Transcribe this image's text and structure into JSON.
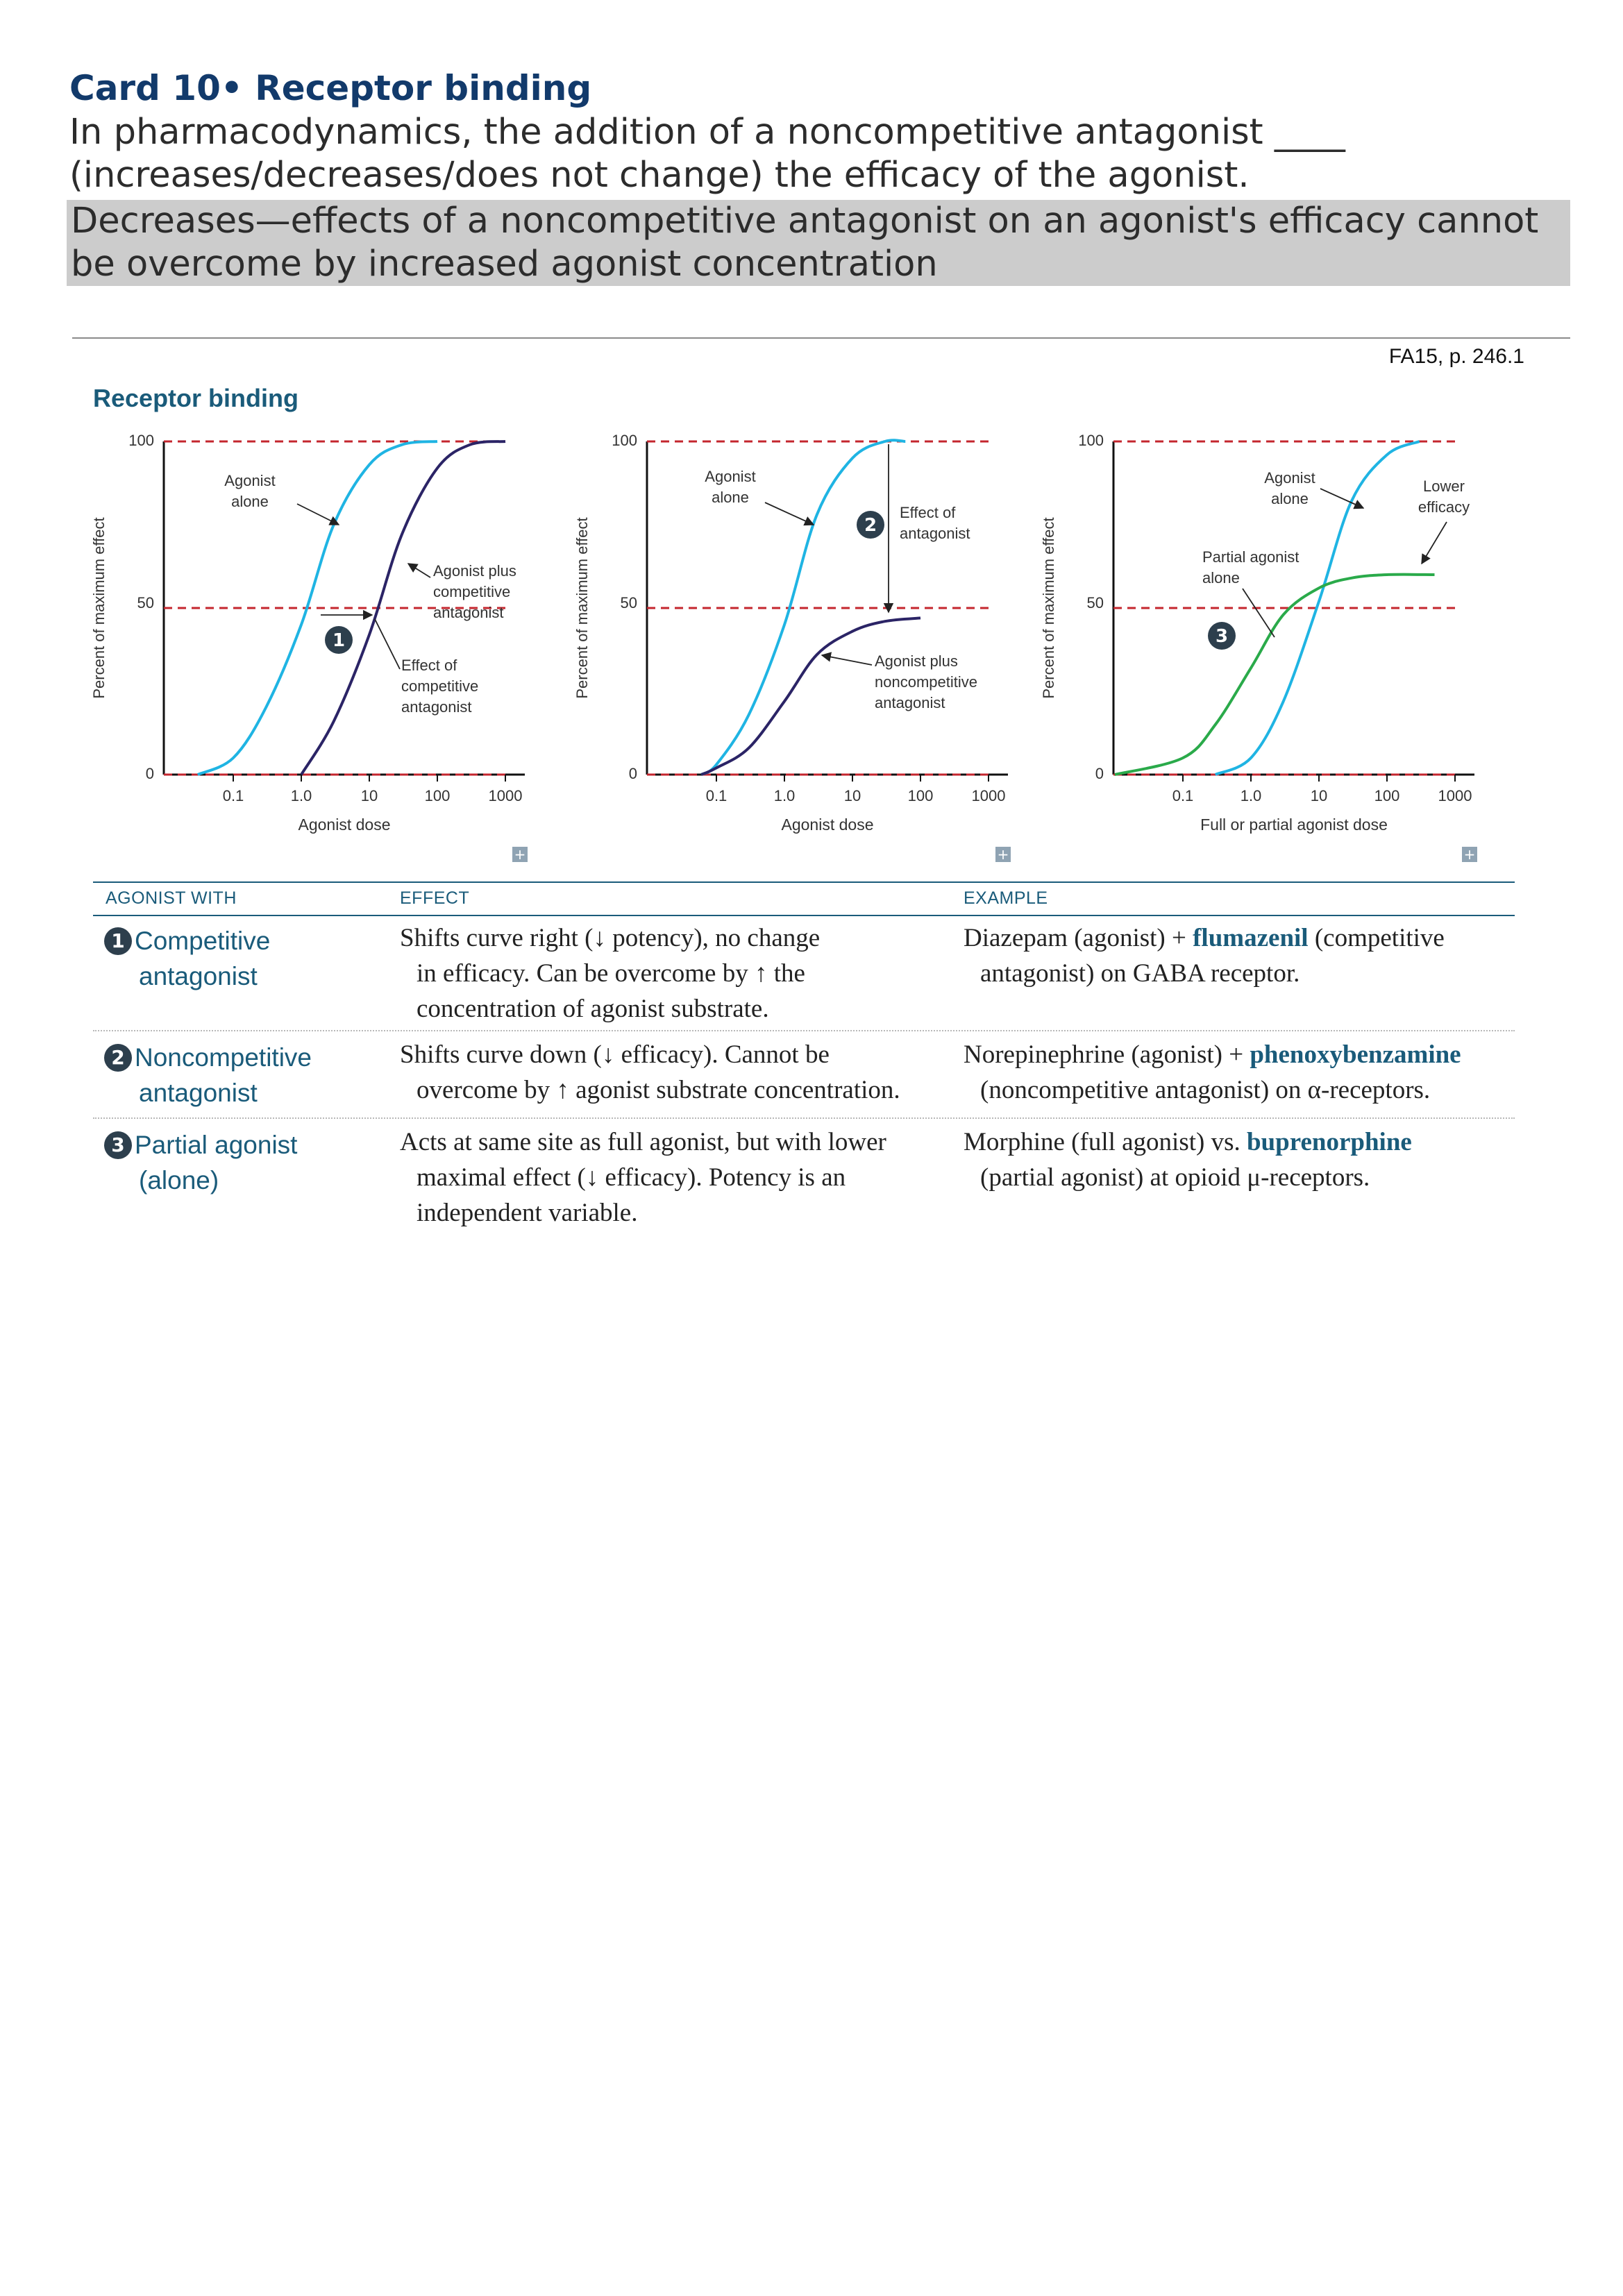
{
  "card": {
    "title": "Card 10• Receptor binding",
    "question": "In pharmacodynamics, the addition of a noncompetitive antagonist ____ (increases/decreases/does not change) the efficacy of the agonist.",
    "answer": "Decreases—effects of a noncompetitive antagonist on an agonist's efficacy cannot be overcome by increased agonist concentration",
    "source": "FA15, p. 246.1"
  },
  "figure": {
    "title": "Receptor binding",
    "colors": {
      "agonist": "#1fb4e3",
      "antagonist": "#2b2466",
      "partial": "#2aaa4a",
      "reference": "#c4262e",
      "accent": "#1a5b7a"
    }
  },
  "chart_data": [
    {
      "type": "line",
      "xscale": "log",
      "xlabel": "Agonist dose",
      "ylabel": "Percent of maximum effect",
      "x_ticks": [
        "0.1",
        "1.0",
        "10",
        "100",
        "1000"
      ],
      "y_ticks": [
        "0",
        "50",
        "100"
      ],
      "ylim": [
        0,
        100
      ],
      "reference_lines": [
        0,
        50,
        100
      ],
      "series": [
        {
          "x": [
            0.03,
            0.1,
            0.3,
            1,
            3,
            10,
            30,
            100
          ],
          "y": [
            0,
            5,
            20,
            45,
            75,
            93,
            99,
            100
          ]
        },
        {
          "x": [
            1,
            3,
            10,
            30,
            100,
            300,
            1000
          ],
          "y": [
            0,
            16,
            42,
            72,
            92,
            99,
            100
          ]
        }
      ],
      "annotations": [
        "Agonist alone",
        "Agonist plus competitive antagonist",
        "Effect of competitive antagonist"
      ],
      "marker": "1"
    },
    {
      "type": "line",
      "xscale": "log",
      "xlabel": "Agonist dose",
      "ylabel": "Percent of maximum effect",
      "x_ticks": [
        "0.1",
        "1.0",
        "10",
        "100",
        "1000"
      ],
      "y_ticks": [
        "0",
        "50",
        "100"
      ],
      "ylim": [
        0,
        100
      ],
      "reference_lines": [
        0,
        50,
        100
      ],
      "series": [
        {
          "x": [
            0.06,
            0.1,
            0.3,
            1,
            3,
            10,
            30,
            60
          ],
          "y": [
            0,
            3,
            18,
            45,
            78,
            95,
            100,
            100
          ]
        },
        {
          "x": [
            0.06,
            0.1,
            0.3,
            1,
            3,
            10,
            30,
            100
          ],
          "y": [
            0,
            2,
            8,
            22,
            36,
            43,
            46,
            47
          ]
        }
      ],
      "annotations": [
        "Agonist alone",
        "Effect of antagonist",
        "Agonist plus noncompetitive antagonist"
      ],
      "marker": "2"
    },
    {
      "type": "line",
      "xscale": "log",
      "xlabel": "Full or partial agonist dose",
      "ylabel": "Percent of maximum effect",
      "x_ticks": [
        "0.1",
        "1.0",
        "10",
        "100",
        "1000"
      ],
      "y_ticks": [
        "0",
        "50",
        "100"
      ],
      "ylim": [
        0,
        100
      ],
      "reference_lines": [
        0,
        50,
        100
      ],
      "series": [
        {
          "x": [
            0.3,
            1,
            3,
            10,
            30,
            100,
            300
          ],
          "y": [
            0,
            5,
            22,
            52,
            82,
            96,
            100
          ]
        },
        {
          "x": [
            0.01,
            0.1,
            0.3,
            1,
            3,
            10,
            30,
            100,
            500
          ],
          "y": [
            0,
            5,
            15,
            32,
            48,
            56,
            59,
            60,
            60
          ]
        }
      ],
      "annotations": [
        "Agonist alone",
        "Partial agonist alone",
        "Lower efficacy"
      ],
      "marker": "3"
    }
  ],
  "table": {
    "headers": [
      "AGONIST WITH",
      "EFFECT",
      "EXAMPLE"
    ],
    "rows": [
      {
        "badge": "1",
        "agent": [
          "Competitive",
          "antagonist"
        ],
        "effect": [
          "Shifts curve right (↓ potency), no change",
          "in efficacy. Can be overcome by ↑ the",
          "concentration of agonist substrate."
        ],
        "example_pre": "Diazepam (agonist) + ",
        "example_drug": "flumazenil",
        "example_post1": " (competitive",
        "example_post2": "antagonist) on GABA receptor."
      },
      {
        "badge": "2",
        "agent": [
          "Noncompetitive",
          "antagonist"
        ],
        "effect": [
          "Shifts curve down (↓ efficacy). Cannot be",
          "overcome by ↑ agonist substrate concentration."
        ],
        "example_pre": "Norepinephrine (agonist) + ",
        "example_drug": "phenoxybenzamine",
        "example_post1": "",
        "example_post2": "(noncompetitive antagonist) on α-receptors."
      },
      {
        "badge": "3",
        "agent": [
          "Partial agonist",
          "(alone)"
        ],
        "effect": [
          "Acts at same site as full agonist, but with lower",
          "maximal effect (↓ efficacy). Potency is an",
          "independent variable."
        ],
        "example_pre": "Morphine (full agonist) vs. ",
        "example_drug": "buprenorphine",
        "example_post1": "",
        "example_post2": "(partial agonist) at opioid μ-receptors."
      }
    ]
  }
}
